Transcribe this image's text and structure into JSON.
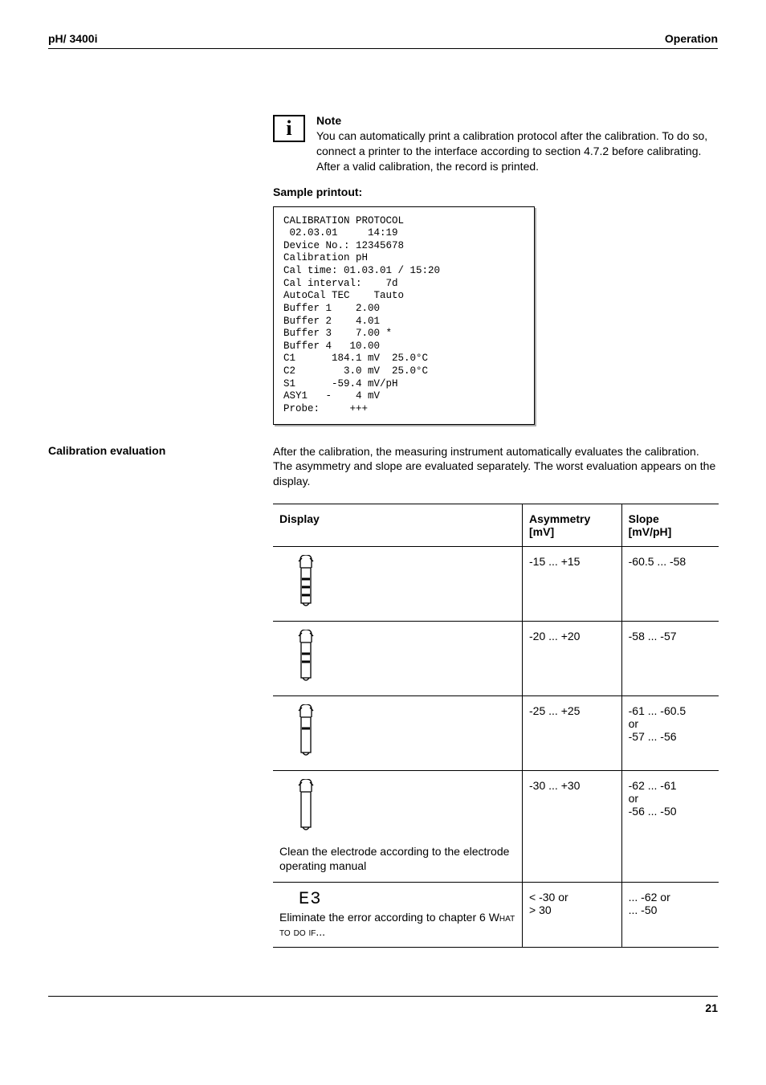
{
  "header": {
    "left": "pH/ 3400i",
    "right": "Operation"
  },
  "note": {
    "title": "Note",
    "body": "You can automatically print a calibration protocol after the calibration. To do so, connect a printer to the interface according to section 4.7.2 before calibrating. After a valid calibration, the record is printed."
  },
  "sample_title": "Sample printout:",
  "printout": "CALIBRATION PROTOCOL\n 02.03.01     14:19\nDevice No.: 12345678\nCalibration pH\nCal time: 01.03.01 / 15:20\nCal interval:    7d\nAutoCal TEC    Tauto\nBuffer 1    2.00\nBuffer 2    4.01\nBuffer 3    7.00 *\nBuffer 4   10.00\nC1      184.1 mV  25.0°C\nC2        3.0 mV  25.0°C\nS1      -59.4 mV/pH\nASY1   -    4 mV\nProbe:     +++",
  "cal_eval": {
    "label": "Calibration evaluation",
    "text": "After the calibration, the measuring instrument automatically evaluates the calibration. The asymmetry and slope are evaluated separately. The worst evaluation appears on the display."
  },
  "table": {
    "headers": {
      "display": "Display",
      "asymmetry": "Asymmetry\n[mV]",
      "slope": "Slope\n[mV/pH]"
    },
    "rows": [
      {
        "bars": 3,
        "asym": "-15 ... +15",
        "slope": "-60.5 ... -58",
        "desc": ""
      },
      {
        "bars": 2,
        "asym": "-20 ... +20",
        "slope": "-58 ... -57",
        "desc": ""
      },
      {
        "bars": 1,
        "asym": "-25 ... +25",
        "slope": "-61 ... -60.5\nor\n-57 ... -56",
        "desc": ""
      },
      {
        "bars": 0,
        "asym": "-30 ... +30",
        "slope": "-62 ... -61\nor\n-56 ... -50",
        "desc": "Clean the electrode according to the electrode operating manual"
      },
      {
        "e3": true,
        "asym": "< -30 or\n> 30",
        "slope": "... -62 or\n... -50",
        "desc_pre": "Eliminate the error according to chapter 6 ",
        "desc_sc": "What to do if",
        "desc_post": "..."
      }
    ]
  },
  "footer": {
    "page": "21"
  },
  "style": {
    "probe_stroke": "#000000",
    "probe_stroke_width": 1.3
  }
}
